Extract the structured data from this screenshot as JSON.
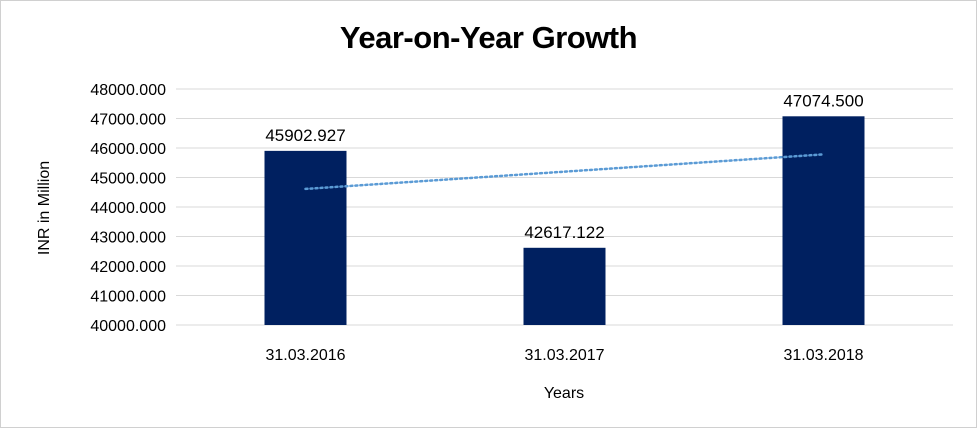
{
  "chart_data": {
    "type": "bar",
    "title": "Year-on-Year Growth",
    "xlabel": "Years",
    "ylabel": "INR in Million",
    "categories": [
      "31.03.2016",
      "31.03.2017",
      "31.03.2018"
    ],
    "values": [
      45902.927,
      42617.122,
      47074.5
    ],
    "data_labels": [
      "45902.927",
      "42617.122",
      "47074.500"
    ],
    "ylim": [
      40000,
      48000
    ],
    "yticks": [
      "40000.000",
      "41000.000",
      "42000.000",
      "43000.000",
      "44000.000",
      "45000.000",
      "46000.000",
      "47000.000",
      "48000.000"
    ],
    "grid": true,
    "trendline": "linear, dotted",
    "legend": "none",
    "colors": {
      "bar": "#002060",
      "trendline": "#5B9BD5",
      "grid": "#d9d9d9"
    }
  }
}
